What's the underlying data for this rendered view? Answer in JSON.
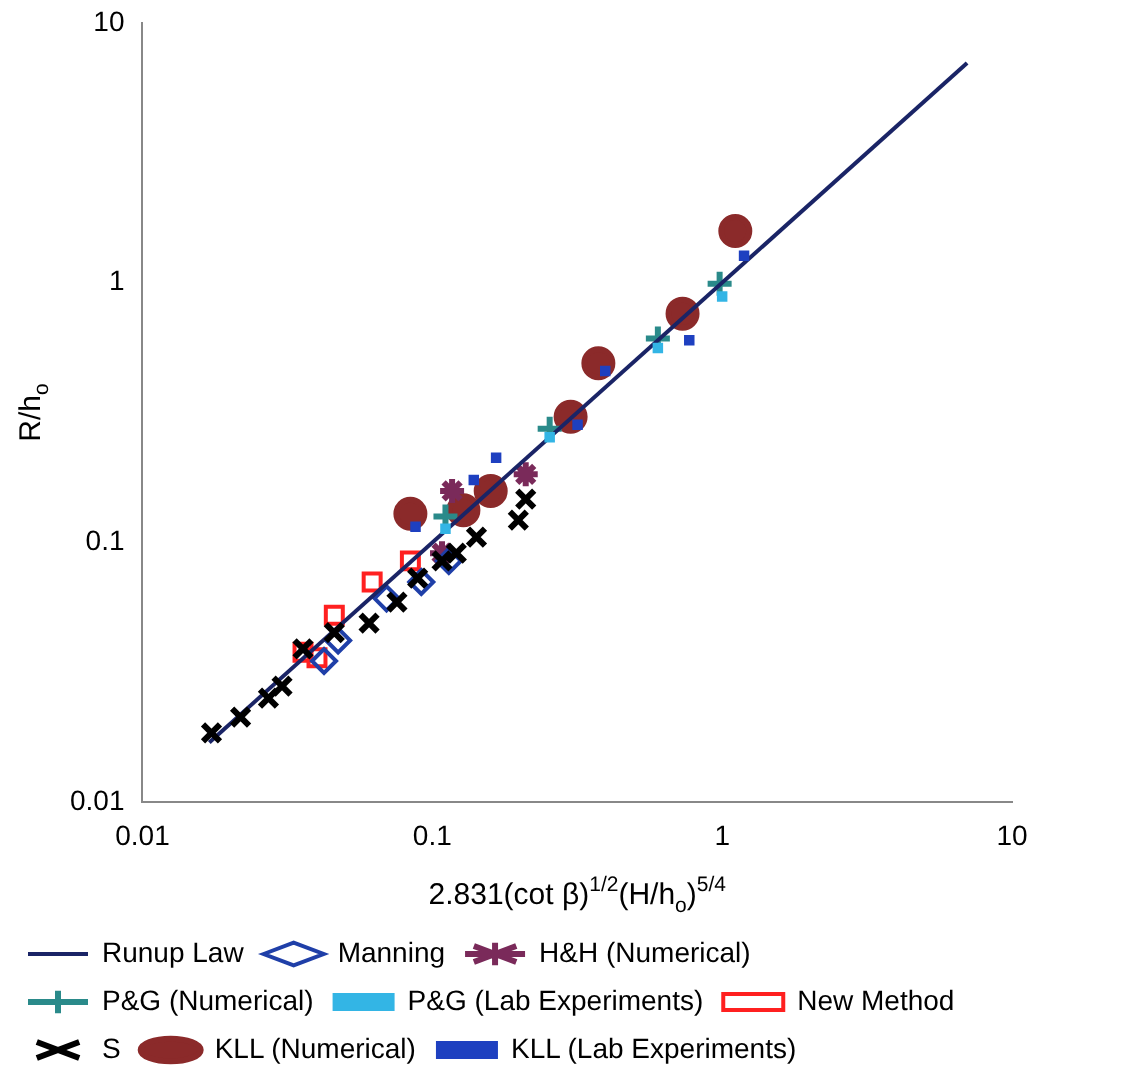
{
  "chart_data": {
    "type": "scatter",
    "xlabel": "2.831(cot β)$^{1/2}$(H/h$_{o}$)$^{5/4}$",
    "ylabel": "R/h$_{o}$",
    "log": "xy",
    "xlim": [
      0.01,
      10
    ],
    "ylim": [
      0.01,
      10
    ],
    "xticks": [
      0.01,
      0.1,
      1,
      10
    ],
    "yticks": [
      0.01,
      0.1,
      1,
      10
    ],
    "grid": false,
    "legend": "bottom",
    "series": [
      {
        "name": "Runup Law",
        "type": "line",
        "color": "#1a2466",
        "marker": "none",
        "line_style": "solid",
        "x": [
          0.017,
          7
        ],
        "values": [
          0.017,
          7
        ]
      },
      {
        "name": "Manning",
        "color": "#1f3fa8",
        "marker": "diamond",
        "x": [
          0.0423,
          0.0473,
          0.0695,
          0.0916,
          0.114
        ],
        "values": [
          0.035,
          0.042,
          0.061,
          0.0705,
          0.085
        ]
      },
      {
        "name": "H&H (Numerical)",
        "color": "#7a2a5a",
        "marker": "cross",
        "x": [
          0.108,
          0.117,
          0.21
        ],
        "values": [
          0.091,
          0.158,
          0.183
        ]
      },
      {
        "name": "P&G (Numerical)",
        "color": "#2a8a8a",
        "marker": "cross",
        "x": [
          0.111,
          0.254,
          0.6,
          0.98
        ],
        "values": [
          0.126,
          0.274,
          0.61,
          0.99
        ]
      },
      {
        "name": "P&G (Lab Experiments)",
        "color": "#33b5e5",
        "marker": "square",
        "x": [
          0.111,
          0.254,
          0.6,
          1.0
        ],
        "values": [
          0.113,
          0.254,
          0.56,
          0.885
        ]
      },
      {
        "name": "New Method",
        "color": "#ff2020",
        "marker": "square",
        "x": [
          0.0358,
          0.04,
          0.0459,
          0.062,
          0.084
        ],
        "values": [
          0.0378,
          0.036,
          0.0525,
          0.0705,
          0.085
        ]
      },
      {
        "name": "S",
        "color": "#000000",
        "marker": "cross",
        "x": [
          0.0173,
          0.0218,
          0.0272,
          0.0303,
          0.0358,
          0.0459,
          0.0605,
          0.0755,
          0.089,
          0.108,
          0.121,
          0.142,
          0.198,
          0.21
        ],
        "values": [
          0.0185,
          0.0213,
          0.0252,
          0.028,
          0.039,
          0.045,
          0.049,
          0.059,
          0.073,
          0.085,
          0.091,
          0.105,
          0.122,
          0.147
        ]
      },
      {
        "name": "KLL (Numerical)",
        "color": "#8b2a2a",
        "marker": "circle",
        "x": [
          0.084,
          0.128,
          0.159,
          0.3,
          0.374,
          0.73,
          1.11
        ],
        "values": [
          0.129,
          0.133,
          0.158,
          0.305,
          0.49,
          0.76,
          1.58
        ]
      },
      {
        "name": "KLL (Lab Experiments)",
        "color": "#1e40c0",
        "marker": "square",
        "x": [
          0.0875,
          0.139,
          0.166,
          0.317,
          0.395,
          0.77,
          1.19
        ],
        "values": [
          0.115,
          0.174,
          0.212,
          0.284,
          0.457,
          0.6,
          1.27
        ]
      }
    ]
  }
}
